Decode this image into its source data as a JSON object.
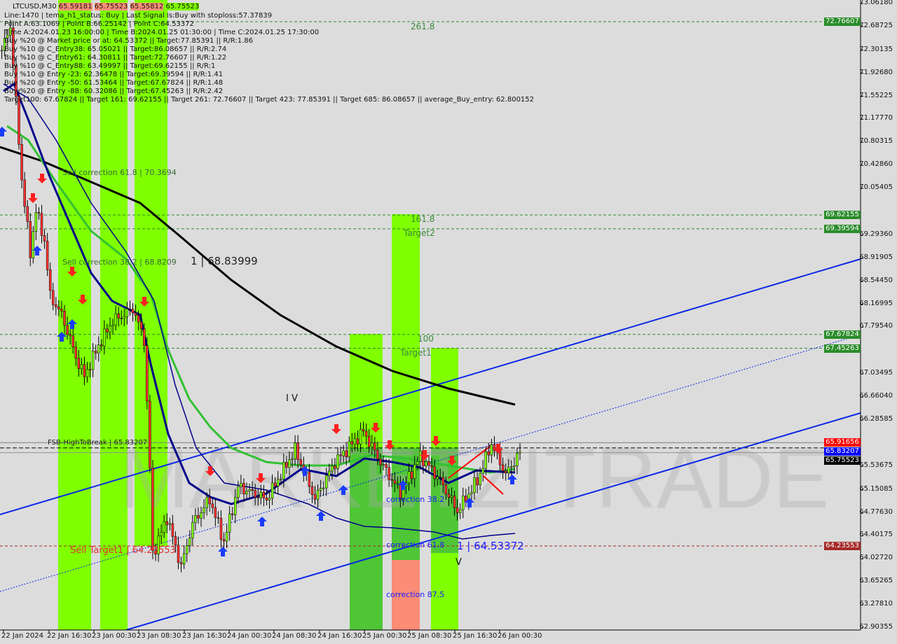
{
  "header": {
    "symbol": "LTCUSD,M30",
    "ohlc": [
      "65.59181",
      "65.75523",
      "65.55812",
      "65.75523"
    ],
    "lines": [
      "Line:1470 | tema_h1_status: Buy | Last Signal is:Buy with stoploss:57.37839",
      "Point A:63.1069 | Point B:66.25142 | Point C:64.53372",
      "Time A:2024.01.23 16:00:00 | Time B:2024.01.25 01:30:00 | Time C:2024.01.25 17:30:00",
      "Buy %20 @ Market price or at: 64.53372 || Target:77.85391 || R/R:1.86",
      "Buy %10 @ C_Entry38: 65.05021 || Target:86.08657 || R/R:2.74",
      "Buy %10 @ C_Entry61: 64.30811 || Target:72.76607 || R/R:1.22",
      "Buy %10 @ C_Entry88: 63.49997 || Target:69.62155 || R/R:1",
      "Buy %10 @ Entry -23: 62.36478 || Target:69.39594 || R/R:1.41",
      "Buy %20 @ Entry -50: 61.53464 || Target:67.67824 || R/R:1.48",
      "Buy %20 @ Entry -88: 60.32086 || Target:67.45263 || R/R:2.42",
      "Target100: 67.67824 || Target 161: 69.62155 || Target 261: 72.76607 || Target 423: 77.85391 || Target 685: 86.08657 || average_Buy_entry: 62.800152"
    ]
  },
  "watermark": "MARKETZITRADE",
  "annotations": {
    "fib_261": "261.8",
    "fib_161": "161.8",
    "target2": "Target2",
    "fib_100": "100",
    "target1": "Target1",
    "sell_corr_61": "Sell correction 61.8 | 70.3694",
    "sell_corr_38": "Sell correction 38.2 | 68.8209",
    "point_1_high": "1 | 68.83999",
    "wave_iv": "I V",
    "wave_v": "V",
    "fsb": "FSB-HighToBreak | 65.83207",
    "sell_target": "Sell Target1 | 64.23553",
    "corr_38": "correction 38.2",
    "corr_61": "correction 61.8",
    "point_1_low": "1 | 64.53372",
    "corr_87": "correction 87.5"
  },
  "chart_data": {
    "type": "candlestick",
    "symbol": "LTCUSD",
    "timeframe": "M30",
    "ylim": [
      62.90355,
      73.0618
    ],
    "y_ticks": [
      "73.06180",
      "72.68725",
      "72.30135",
      "71.92680",
      "71.55225",
      "71.17770",
      "70.80315",
      "70.42860",
      "70.05405",
      "69.29360",
      "68.91905",
      "68.54450",
      "68.16995",
      "67.79540",
      "67.03495",
      "66.66040",
      "66.28585",
      "65.53675",
      "65.15085",
      "64.77630",
      "64.40175",
      "64.02720",
      "63.65265",
      "63.27810",
      "62.90355"
    ],
    "x_ticks": [
      "22 Jan 2024",
      "22 Jan 16:30",
      "23 Jan 00:30",
      "23 Jan 08:30",
      "23 Jan 16:30",
      "24 Jan 00:30",
      "24 Jan 08:30",
      "24 Jan 16:30",
      "25 Jan 00:30",
      "25 Jan 08:30",
      "25 Jan 16:30",
      "26 Jan 00:30"
    ],
    "price_tags": [
      {
        "value": "72.76607",
        "color": "#2a8c2a"
      },
      {
        "value": "69.62155",
        "color": "#2a8c2a"
      },
      {
        "value": "69.39594",
        "color": "#2a8c2a"
      },
      {
        "value": "67.67824",
        "color": "#2a8c2a"
      },
      {
        "value": "67.45263",
        "color": "#2a8c2a"
      },
      {
        "value": "65.91656",
        "color": "#ff0000"
      },
      {
        "value": "65.83207",
        "color": "#0000ff"
      },
      {
        "value": "65.75523",
        "color": "#000000"
      },
      {
        "value": "64.23553",
        "color": "#a52a2a"
      }
    ],
    "approx_close": [
      [
        "2024-01-22T05:30",
        72.3
      ],
      [
        "2024-01-22T07:00",
        72.7
      ],
      [
        "2024-01-22T09:00",
        70.2
      ],
      [
        "2024-01-22T10:30",
        69.0
      ],
      [
        "2024-01-22T11:30",
        69.7
      ],
      [
        "2024-01-22T13:00",
        69.2
      ],
      [
        "2024-01-22T14:00",
        68.3
      ],
      [
        "2024-01-22T16:00",
        68.0
      ],
      [
        "2024-01-22T17:30",
        67.6
      ],
      [
        "2024-01-22T18:30",
        67.3
      ],
      [
        "2024-01-22T20:00",
        67.0
      ],
      [
        "2024-01-22T22:30",
        67.5
      ],
      [
        "2024-01-23T01:00",
        67.9
      ],
      [
        "2024-01-23T03:00",
        68.0
      ],
      [
        "2024-01-23T04:30",
        68.1
      ],
      [
        "2024-01-23T06:30",
        67.6
      ],
      [
        "2024-01-23T07:30",
        65.5
      ],
      [
        "2024-01-23T08:00",
        64.1
      ],
      [
        "2024-01-23T10:30",
        64.7
      ],
      [
        "2024-01-23T13:00",
        63.9
      ],
      [
        "2024-01-23T15:00",
        64.6
      ],
      [
        "2024-01-23T18:00",
        65.0
      ],
      [
        "2024-01-23T20:30",
        64.3
      ],
      [
        "2024-01-23T23:00",
        65.2
      ],
      [
        "2024-01-24T04:00",
        65.0
      ],
      [
        "2024-01-24T09:00",
        65.8
      ],
      [
        "2024-01-24T12:30",
        65.0
      ],
      [
        "2024-01-24T16:00",
        65.6
      ],
      [
        "2024-01-24T21:00",
        66.1
      ],
      [
        "2024-01-25T00:00",
        65.6
      ],
      [
        "2024-01-25T03:30",
        65.1
      ],
      [
        "2024-01-25T07:00",
        65.7
      ],
      [
        "2024-01-25T10:30",
        65.3
      ],
      [
        "2024-01-25T13:30",
        64.8
      ],
      [
        "2024-01-25T17:00",
        65.3
      ],
      [
        "2024-01-25T19:30",
        65.9
      ],
      [
        "2024-01-25T22:00",
        65.4
      ],
      [
        "2024-01-26T00:30",
        65.75523
      ]
    ],
    "colors": {
      "bull": "#7fff00",
      "bear": "#ff3030",
      "ma_slow": "#000000",
      "ma_fast": "#33c033",
      "channel": "#0a28e6"
    }
  }
}
